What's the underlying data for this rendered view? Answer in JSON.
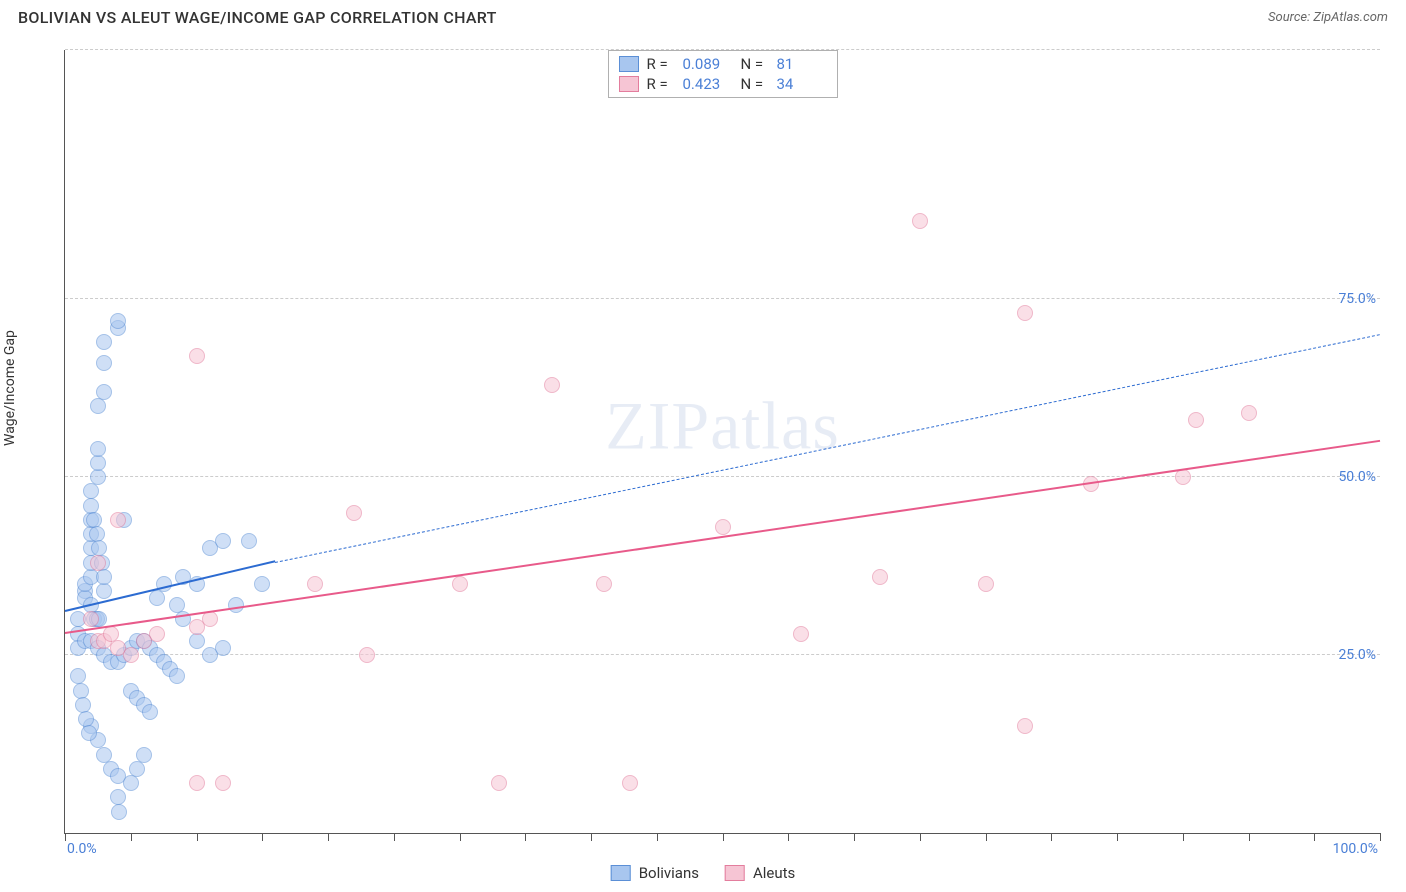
{
  "title": "BOLIVIAN VS ALEUT WAGE/INCOME GAP CORRELATION CHART",
  "source": "Source: ZipAtlas.com",
  "watermark_a": "ZIP",
  "watermark_b": "atlas",
  "chart": {
    "type": "scatter",
    "ylabel": "Wage/Income Gap",
    "xlim": [
      0,
      100
    ],
    "ylim": [
      0,
      110
    ],
    "ygrid": [
      25,
      50,
      75,
      110
    ],
    "ytick_labels": {
      "25": "25.0%",
      "50": "50.0%",
      "75": "75.0%",
      "100": "100.0%"
    },
    "xtick_positions": [
      0,
      5,
      10,
      15,
      20,
      25,
      30,
      35,
      40,
      45,
      50,
      55,
      60,
      65,
      70,
      75,
      80,
      85,
      90,
      95,
      100
    ],
    "x_left_label": "0.0%",
    "x_right_label": "100.0%",
    "background_color": "#ffffff",
    "grid_color": "#cccccc",
    "axis_color": "#555555",
    "tick_label_color": "#4a7fd6",
    "marker_radius": 8,
    "marker_opacity": 0.55,
    "series": {
      "bolivians": {
        "label": "Bolivians",
        "fill": "#a8c6ef",
        "stroke": "#5b8fd6",
        "trend_color": "#2c6bd1",
        "trend_solid": {
          "x1": 0,
          "y1": 31,
          "x2": 16,
          "y2": 38
        },
        "trend_dashed": {
          "x1": 16,
          "y1": 38,
          "x2": 100,
          "y2": 70
        },
        "R_label": "R =",
        "R_value": "0.089",
        "N_label": "N =",
        "N_value": "81",
        "points": [
          [
            1,
            30
          ],
          [
            1,
            28
          ],
          [
            1.5,
            34
          ],
          [
            1.5,
            33
          ],
          [
            1.5,
            35
          ],
          [
            2,
            36
          ],
          [
            2,
            38
          ],
          [
            2,
            40
          ],
          [
            2,
            42
          ],
          [
            2,
            44
          ],
          [
            2,
            46
          ],
          [
            2.5,
            50
          ],
          [
            2.5,
            52
          ],
          [
            2.5,
            54
          ],
          [
            2.5,
            60
          ],
          [
            3,
            62
          ],
          [
            3,
            66
          ],
          [
            3,
            69
          ],
          [
            4,
            71
          ],
          [
            4,
            72
          ],
          [
            1,
            26
          ],
          [
            1.5,
            27
          ],
          [
            2,
            27
          ],
          [
            2.5,
            26
          ],
          [
            3,
            25
          ],
          [
            3.5,
            24
          ],
          [
            4,
            24
          ],
          [
            4.5,
            25
          ],
          [
            5,
            26
          ],
          [
            5.5,
            27
          ],
          [
            6,
            27
          ],
          [
            6.5,
            26
          ],
          [
            7,
            25
          ],
          [
            7.5,
            24
          ],
          [
            8,
            23
          ],
          [
            8.5,
            22
          ],
          [
            5,
            20
          ],
          [
            5.5,
            19
          ],
          [
            6,
            18
          ],
          [
            6.5,
            17
          ],
          [
            2,
            15
          ],
          [
            2.5,
            13
          ],
          [
            3,
            11
          ],
          [
            3.5,
            9
          ],
          [
            4,
            8
          ],
          [
            4,
            5
          ],
          [
            4.1,
            3
          ],
          [
            5,
            7
          ],
          [
            5.5,
            9
          ],
          [
            6,
            11
          ],
          [
            1,
            22
          ],
          [
            1.2,
            20
          ],
          [
            1.4,
            18
          ],
          [
            1.6,
            16
          ],
          [
            1.8,
            14
          ],
          [
            2,
            32
          ],
          [
            3,
            34
          ],
          [
            2.2,
            30
          ],
          [
            2.4,
            30
          ],
          [
            2.6,
            30
          ],
          [
            2,
            48
          ],
          [
            2.2,
            44
          ],
          [
            2.4,
            42
          ],
          [
            2.6,
            40
          ],
          [
            2.8,
            38
          ],
          [
            3,
            36
          ],
          [
            9,
            36
          ],
          [
            10,
            35
          ],
          [
            11,
            40
          ],
          [
            12,
            41
          ],
          [
            14,
            41
          ],
          [
            15,
            35
          ],
          [
            13,
            32
          ],
          [
            10,
            27
          ],
          [
            11,
            25
          ],
          [
            12,
            26
          ],
          [
            8.5,
            32
          ],
          [
            9,
            30
          ],
          [
            7,
            33
          ],
          [
            7.5,
            35
          ],
          [
            4.5,
            44
          ]
        ]
      },
      "aleuts": {
        "label": "Aleuts",
        "fill": "#f6c5d4",
        "stroke": "#e37d9d",
        "trend_color": "#e85a8a",
        "trend_solid": {
          "x1": 0,
          "y1": 28,
          "x2": 100,
          "y2": 55
        },
        "trend_dashed": null,
        "R_label": "R =",
        "R_value": "0.423",
        "N_label": "N =",
        "N_value": "34",
        "points": [
          [
            2,
            30
          ],
          [
            2.5,
            27
          ],
          [
            3,
            27
          ],
          [
            3.5,
            28
          ],
          [
            4,
            26
          ],
          [
            5,
            25
          ],
          [
            6,
            27
          ],
          [
            7,
            28
          ],
          [
            10,
            29
          ],
          [
            11,
            30
          ],
          [
            2.5,
            38
          ],
          [
            4,
            44
          ],
          [
            10,
            67
          ],
          [
            10,
            7
          ],
          [
            12,
            7
          ],
          [
            19,
            35
          ],
          [
            22,
            45
          ],
          [
            23,
            25
          ],
          [
            30,
            35
          ],
          [
            33,
            7
          ],
          [
            37,
            63
          ],
          [
            41,
            35
          ],
          [
            43,
            7
          ],
          [
            50,
            43
          ],
          [
            56,
            28
          ],
          [
            62,
            36
          ],
          [
            65,
            86
          ],
          [
            70,
            35
          ],
          [
            73,
            15
          ],
          [
            73,
            73
          ],
          [
            85,
            50
          ],
          [
            86,
            58
          ],
          [
            78,
            49
          ],
          [
            90,
            59
          ]
        ]
      }
    }
  }
}
